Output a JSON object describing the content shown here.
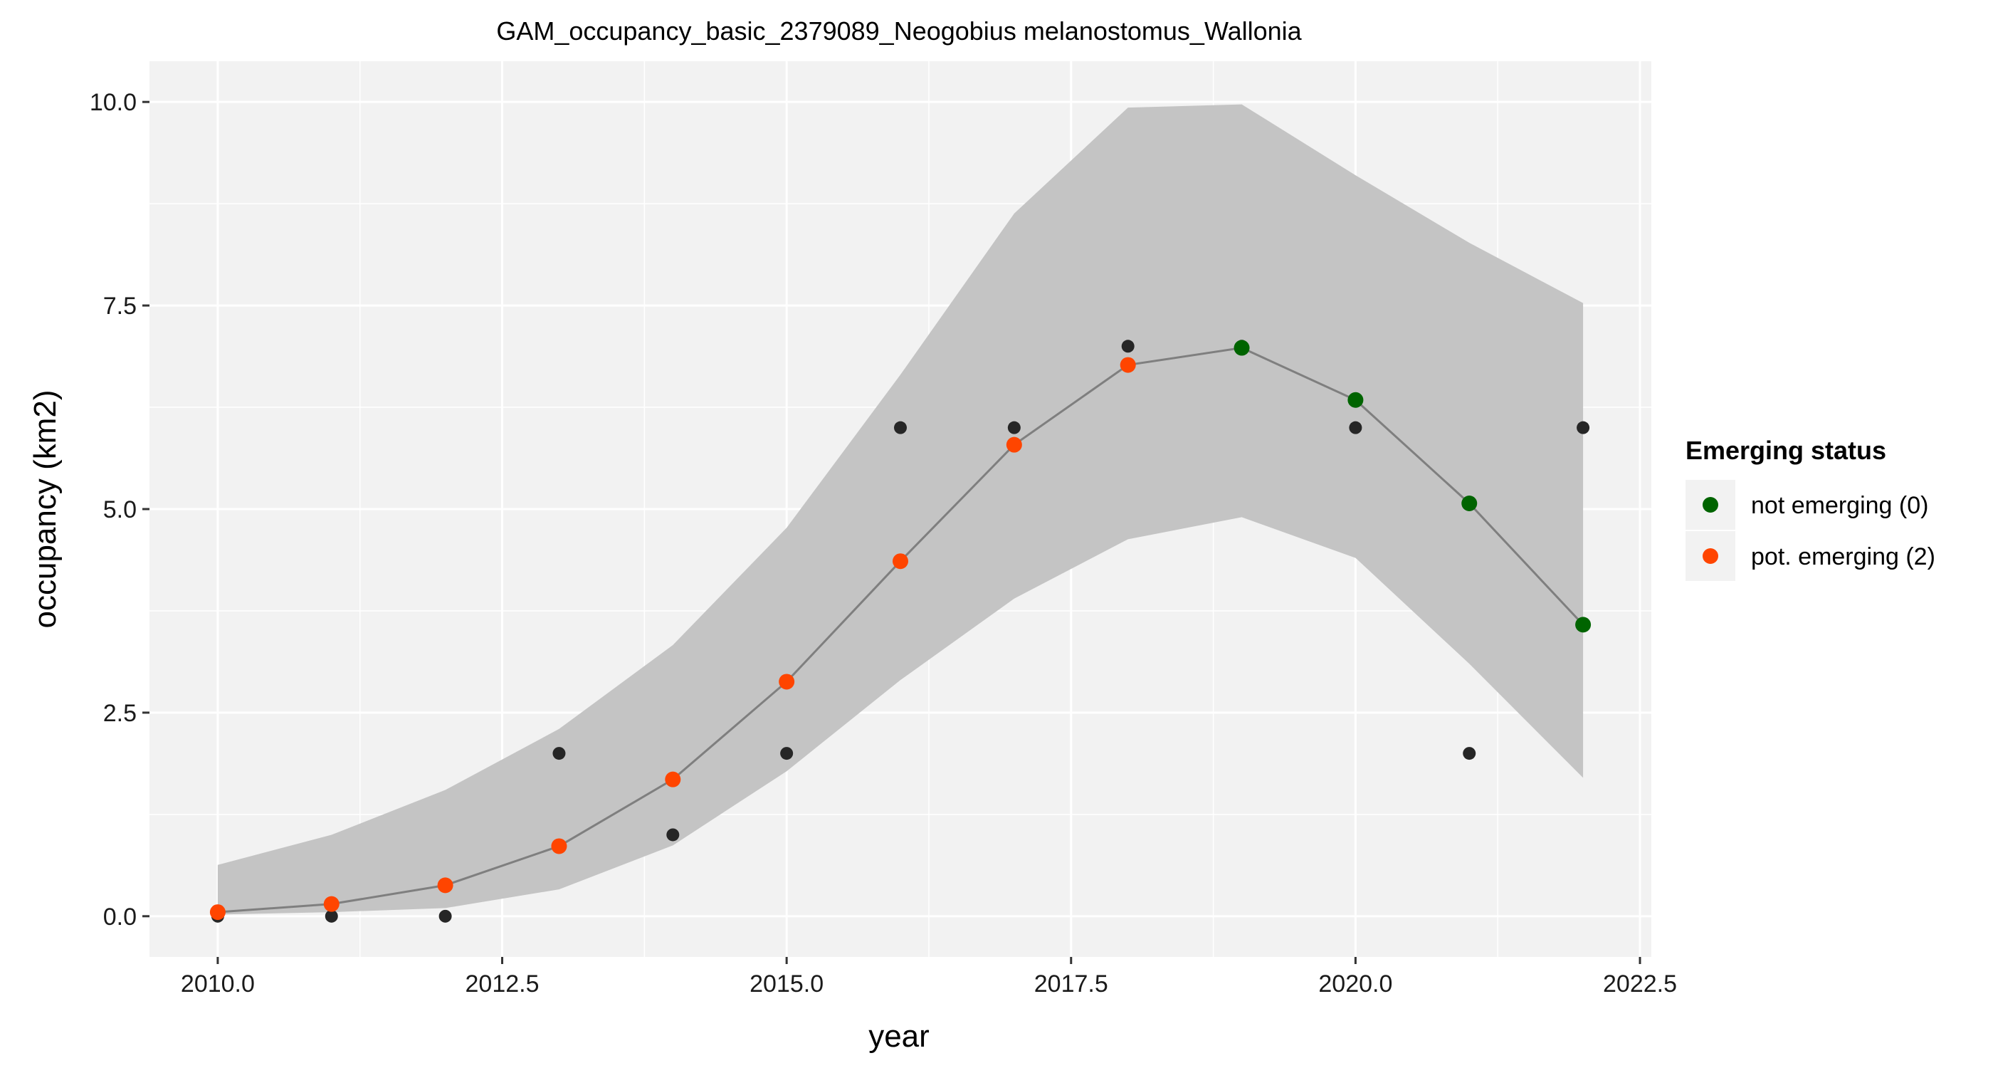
{
  "chart_data": {
    "type": "line",
    "title": "GAM_occupancy_basic_2379089_Neogobius melanostomus_Wallonia",
    "xlabel": "year",
    "ylabel": "occupancy (km2)",
    "xlim": [
      2009.4,
      2022.6
    ],
    "ylim": [
      -0.5,
      10.5
    ],
    "x_ticks": [
      2010.0,
      2012.5,
      2015.0,
      2017.5,
      2020.0,
      2022.5
    ],
    "x_tick_labels": [
      "2010.0",
      "2012.5",
      "2015.0",
      "2017.5",
      "2020.0",
      "2022.5"
    ],
    "y_ticks": [
      0.0,
      2.5,
      5.0,
      7.5,
      10.0
    ],
    "y_tick_labels": [
      "0.0",
      "2.5",
      "5.0",
      "7.5",
      "10.0"
    ],
    "grid": true,
    "legend_position": "right",
    "legend_title": "Emerging status",
    "legend_entries": [
      {
        "label": "not emerging (0)",
        "color": "#006400"
      },
      {
        "label": "pot. emerging (2)",
        "color": "#ff4500"
      }
    ],
    "observed": {
      "x": [
        2010,
        2011,
        2012,
        2013,
        2014,
        2015,
        2016,
        2017,
        2018,
        2019,
        2020,
        2021,
        2022
      ],
      "values": [
        0,
        0,
        0,
        2,
        1,
        2,
        6,
        6,
        7,
        7,
        6,
        2,
        6
      ]
    },
    "fitted": {
      "x": [
        2010,
        2011,
        2012,
        2013,
        2014,
        2015,
        2016,
        2017,
        2018,
        2019,
        2020,
        2021,
        2022
      ],
      "values": [
        0.05,
        0.15,
        0.38,
        0.86,
        1.68,
        2.88,
        4.36,
        5.79,
        6.77,
        6.98,
        6.34,
        5.07,
        3.58
      ],
      "status": [
        2,
        2,
        2,
        2,
        2,
        2,
        2,
        2,
        2,
        0,
        0,
        0,
        0
      ]
    },
    "ci_lower": [
      0.02,
      0.05,
      0.1,
      0.33,
      0.87,
      1.78,
      2.9,
      3.9,
      4.63,
      4.9,
      4.4,
      3.1,
      1.7
    ],
    "ci_upper": [
      0.63,
      1.0,
      1.55,
      2.3,
      3.33,
      4.77,
      6.65,
      8.63,
      9.93,
      9.97,
      9.1,
      8.27,
      7.53
    ],
    "colors": {
      "panel_background": "#f2f2f2",
      "grid": "#ffffff",
      "ribbon": "#c4c4c4",
      "line": "#7f7f7f",
      "observed_point": "#262626",
      "not_emerging": "#006400",
      "pot_emerging": "#ff4500"
    }
  }
}
